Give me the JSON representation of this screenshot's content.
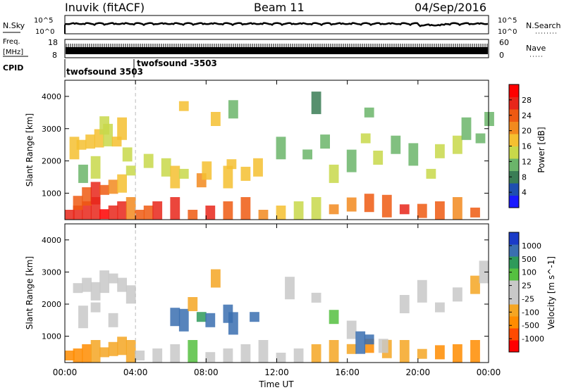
{
  "header": {
    "station": "Inuvik (fitACF)",
    "beam": "Beam 11",
    "date": "04/Sep/2016"
  },
  "top_panels": {
    "noise_left_label": "N.Sky",
    "noise_right_label": "N.Search",
    "noise_ticks_left": [
      "10^5",
      "10^0"
    ],
    "noise_ticks_right": [
      "10^5",
      "10^0"
    ],
    "freq_label_top": "Freq.",
    "freq_label_unit": "[MHz]",
    "freq_ticks": [
      "18",
      "8"
    ],
    "nave_label": "Nave",
    "nave_ticks": [
      "60",
      "0"
    ],
    "cpid_label": "CPID",
    "cpid_entries": [
      {
        "text": "twofsound 3503",
        "start_hour": 0
      },
      {
        "text": "twofsound -3503",
        "start_hour": 4.0
      }
    ]
  },
  "chart_data": [
    {
      "type": "heatmap",
      "title": "Power",
      "ylabel": "Slant Range [km]",
      "xlabel": "",
      "x_range_hours": [
        0,
        24
      ],
      "y_range_km": [
        180,
        4500
      ],
      "y_ticks": [
        1000,
        2000,
        3000,
        4000
      ],
      "colorbar_label": "Power [dB]",
      "colorbar_ticks": [
        4,
        8,
        12,
        16,
        20,
        24,
        28
      ],
      "colorbar_range": [
        0,
        32
      ],
      "colors": [
        "#1a1aff",
        "#1f4fb0",
        "#3a7d55",
        "#6bb56a",
        "#c8d84a",
        "#f5c030",
        "#f28a1e",
        "#ef5a12",
        "#e8261a",
        "#ff0000"
      ],
      "mode_change_hour": 4.0,
      "cells": [
        [
          0,
          300,
          0.85
        ],
        [
          0.5,
          300,
          0.9
        ],
        [
          1,
          300,
          0.9
        ],
        [
          1.5,
          300,
          0.85
        ],
        [
          2,
          350,
          0.95
        ],
        [
          2.5,
          400,
          0.9
        ],
        [
          3,
          400,
          0.85
        ],
        [
          3.5,
          350,
          0.7
        ],
        [
          4,
          300,
          0.75
        ],
        [
          4.5,
          300,
          0.8
        ],
        [
          5,
          300,
          0.85
        ],
        [
          6,
          300,
          0.85
        ],
        [
          7,
          300,
          0.8
        ],
        [
          8,
          300,
          0.85
        ],
        [
          9,
          300,
          0.8
        ],
        [
          10,
          300,
          0.75
        ],
        [
          11,
          300,
          0.7
        ],
        [
          12,
          300,
          0.55
        ],
        [
          13,
          300,
          0.4
        ],
        [
          14,
          350,
          0.45
        ],
        [
          15,
          500,
          0.65
        ],
        [
          16,
          650,
          0.7
        ],
        [
          17,
          700,
          0.75
        ],
        [
          18,
          600,
          0.8
        ],
        [
          19,
          500,
          0.85
        ],
        [
          20,
          450,
          0.8
        ],
        [
          21,
          450,
          0.75
        ],
        [
          22,
          400,
          0.7
        ],
        [
          23,
          400,
          0.75
        ],
        [
          0.5,
          700,
          0.75
        ],
        [
          1,
          900,
          0.8
        ],
        [
          1.5,
          1000,
          0.85
        ],
        [
          2,
          1100,
          0.8
        ],
        [
          2.5,
          1200,
          0.7
        ],
        [
          3,
          1300,
          0.6
        ],
        [
          0.3,
          2400,
          0.5
        ],
        [
          0.7,
          2500,
          0.55
        ],
        [
          1.2,
          2600,
          0.6
        ],
        [
          1.7,
          2700,
          0.55
        ],
        [
          2.2,
          2800,
          0.45
        ],
        [
          2.7,
          2600,
          0.5
        ],
        [
          3.3,
          2200,
          0.45
        ],
        [
          0.8,
          1600,
          0.35
        ],
        [
          1.5,
          1800,
          0.4
        ],
        [
          3.5,
          1700,
          0.45
        ],
        [
          4.5,
          2000,
          0.4
        ],
        [
          5.5,
          1800,
          0.45
        ],
        [
          6,
          1500,
          0.5
        ],
        [
          6.5,
          1600,
          0.45
        ],
        [
          7.5,
          1400,
          0.65
        ],
        [
          7.8,
          1700,
          0.55
        ],
        [
          9,
          1500,
          0.6
        ],
        [
          9.2,
          1900,
          0.5
        ],
        [
          10,
          1600,
          0.55
        ],
        [
          10.7,
          1800,
          0.5
        ],
        [
          12,
          2400,
          0.35
        ],
        [
          13.5,
          2200,
          0.3
        ],
        [
          14.5,
          2600,
          0.3
        ],
        [
          15,
          1600,
          0.4
        ],
        [
          16,
          2000,
          0.35
        ],
        [
          16.8,
          2700,
          0.45
        ],
        [
          17.5,
          2100,
          0.4
        ],
        [
          18.5,
          2500,
          0.35
        ],
        [
          19.5,
          2200,
          0.35
        ],
        [
          20.5,
          1600,
          0.4
        ],
        [
          21,
          2300,
          0.4
        ],
        [
          22,
          2500,
          0.4
        ],
        [
          22.5,
          3000,
          0.35
        ],
        [
          23.3,
          2700,
          0.35
        ],
        [
          23.8,
          3300,
          0.3
        ],
        [
          2,
          3100,
          0.45
        ],
        [
          3,
          3000,
          0.5
        ],
        [
          6.5,
          3700,
          0.6
        ],
        [
          8.3,
          3300,
          0.55
        ],
        [
          9.3,
          3600,
          0.35
        ],
        [
          14,
          3800,
          0.25
        ],
        [
          17,
          3500,
          0.3
        ]
      ]
    },
    {
      "type": "heatmap",
      "title": "Velocity",
      "ylabel": "Slant Range [km]",
      "xlabel": "Time UT",
      "x_range_hours": [
        0,
        24
      ],
      "x_ticks": [
        "00:00",
        "04:00",
        "08:00",
        "12:00",
        "16:00",
        "20:00",
        "00:00"
      ],
      "y_range_km": [
        180,
        4500
      ],
      "y_ticks": [
        1000,
        2000,
        3000,
        4000
      ],
      "colorbar_label": "Velocity [m s^-1]",
      "colorbar_ticks": [
        "1000",
        "500",
        "100",
        "25",
        "-25",
        "-100",
        "-500",
        "-1000"
      ],
      "colors": [
        "#ff0000",
        "#ff4a00",
        "#ff8c00",
        "#f5a623",
        "#c8c8c8",
        "#c8c8c8",
        "#55c040",
        "#2e9a5a",
        "#3a6fb0",
        "#1a3bc8"
      ],
      "colors_order": "negative_to_positive",
      "cells": [
        [
          0,
          400,
          0.25
        ],
        [
          0.5,
          350,
          0.2
        ],
        [
          1,
          450,
          0.25
        ],
        [
          1.5,
          400,
          0.3
        ],
        [
          2,
          500,
          0.3
        ],
        [
          2.5,
          600,
          0.35
        ],
        [
          3,
          700,
          0.3
        ],
        [
          3.5,
          500,
          0.35
        ],
        [
          4,
          400,
          0.6
        ],
        [
          5,
          300,
          0.55
        ],
        [
          6,
          350,
          0.6
        ],
        [
          7,
          300,
          0.65
        ],
        [
          8,
          350,
          0.6
        ],
        [
          9,
          400,
          0.55
        ],
        [
          10,
          350,
          0.6
        ],
        [
          11,
          400,
          0.55
        ],
        [
          12,
          300,
          0.45
        ],
        [
          13,
          300,
          0.4
        ],
        [
          14,
          350,
          0.3
        ],
        [
          15,
          500,
          0.3
        ],
        [
          16,
          600,
          0.35
        ],
        [
          17,
          700,
          0.25
        ],
        [
          18,
          600,
          0.3
        ],
        [
          19,
          500,
          0.35
        ],
        [
          20,
          450,
          0.3
        ],
        [
          21,
          500,
          0.25
        ],
        [
          22,
          450,
          0.2
        ],
        [
          23,
          500,
          0.2
        ],
        [
          0.5,
          2500,
          0.45
        ],
        [
          1,
          2600,
          0.45
        ],
        [
          1.5,
          2400,
          0.45
        ],
        [
          2,
          2700,
          0.45
        ],
        [
          2.5,
          2800,
          0.45
        ],
        [
          3,
          2600,
          0.45
        ],
        [
          3.5,
          2300,
          0.45
        ],
        [
          0.8,
          1600,
          0.6
        ],
        [
          1.5,
          1900,
          0.55
        ],
        [
          2.5,
          1500,
          0.45
        ],
        [
          6,
          1600,
          0.85
        ],
        [
          6.5,
          1500,
          0.9
        ],
        [
          7.5,
          1600,
          0.8
        ],
        [
          8,
          1500,
          0.9
        ],
        [
          9,
          1700,
          0.85
        ],
        [
          9.3,
          1400,
          0.9
        ],
        [
          10.5,
          1600,
          0.85
        ],
        [
          7,
          2000,
          0.3
        ],
        [
          8.3,
          2800,
          0.3
        ],
        [
          12.5,
          2500,
          0.45
        ],
        [
          14,
          2200,
          0.45
        ],
        [
          15,
          1600,
          0.7
        ],
        [
          16,
          1200,
          0.5
        ],
        [
          16.5,
          800,
          0.9
        ],
        [
          17,
          900,
          0.85
        ],
        [
          17.8,
          700,
          0.55
        ],
        [
          19,
          2000,
          0.45
        ],
        [
          20,
          2400,
          0.45
        ],
        [
          21,
          1900,
          0.45
        ],
        [
          22,
          2300,
          0.45
        ],
        [
          23,
          2600,
          0.3
        ],
        [
          23.5,
          3000,
          0.45
        ]
      ]
    }
  ]
}
